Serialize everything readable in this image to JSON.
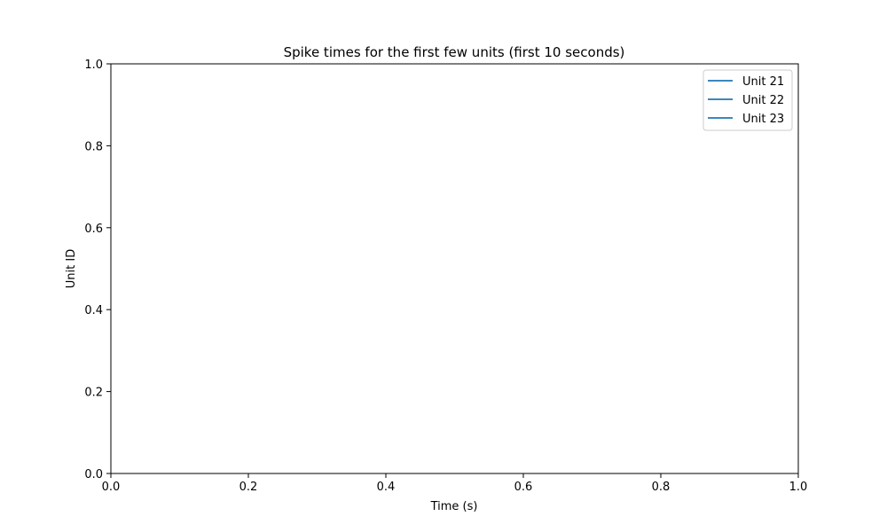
{
  "chart_data": {
    "type": "line",
    "title": "Spike times for the first few units (first 10 seconds)",
    "xlabel": "Time (s)",
    "ylabel": "Unit ID",
    "xlim": [
      0.0,
      1.0
    ],
    "ylim": [
      0.0,
      1.0
    ],
    "xticks": [
      "0.0",
      "0.2",
      "0.4",
      "0.6",
      "0.8",
      "1.0"
    ],
    "yticks": [
      "0.0",
      "0.2",
      "0.4",
      "0.6",
      "0.8",
      "1.0"
    ],
    "grid": false,
    "legend_position": "top-right",
    "series": [
      {
        "name": "Unit 21",
        "color": "#1f77b4",
        "x": [],
        "y": []
      },
      {
        "name": "Unit 22",
        "color": "#1f77b4",
        "x": [],
        "y": []
      },
      {
        "name": "Unit 23",
        "color": "#1f77b4",
        "x": [],
        "y": []
      }
    ]
  }
}
